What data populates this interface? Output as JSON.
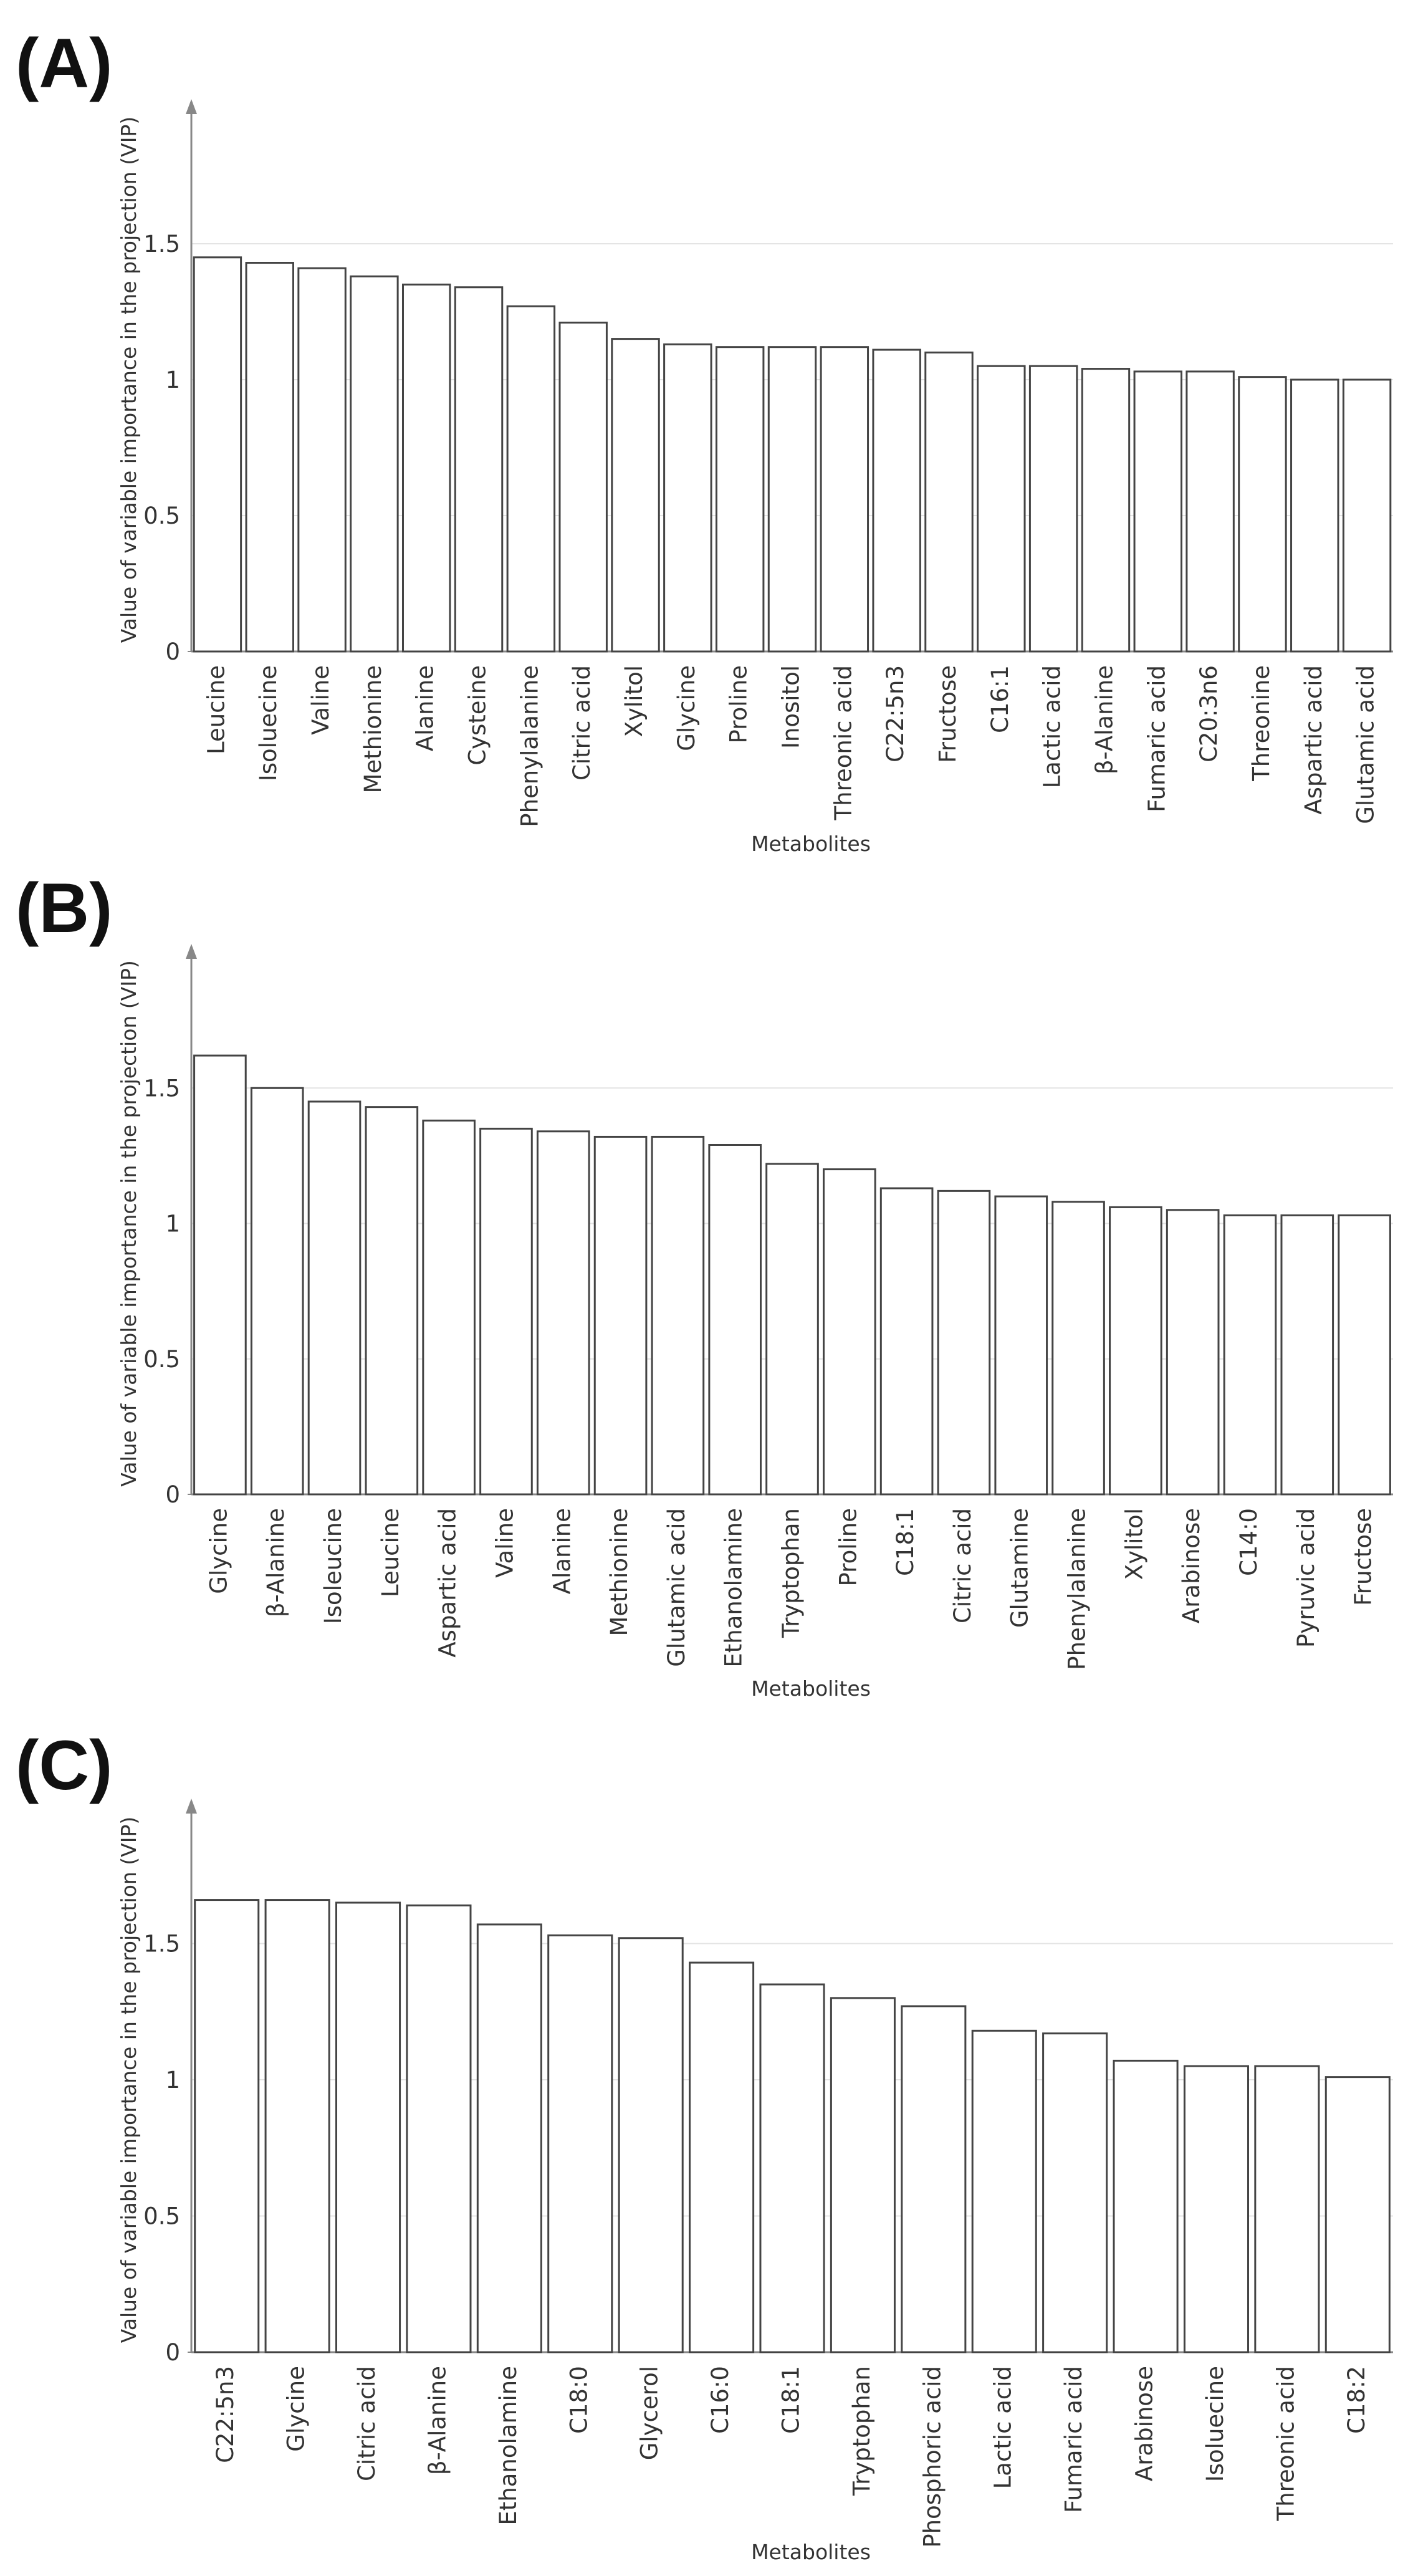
{
  "chart_data": [
    {
      "type": "bar",
      "title": "(A)",
      "x_label": "Metabolites",
      "y_label": "Value of variable importance in the projection (VIP)",
      "categories": [
        "Leucine",
        "Isoluecine",
        "Valine",
        "Methionine",
        "Alanine",
        "Cysteine",
        "Phenylalanine",
        "Citric acid",
        "Xylitol",
        "Glycine",
        "Proline",
        "Inositol",
        "Threonic acid",
        "C22:5n3",
        "Fructose",
        "C16:1",
        "Lactic acid",
        "β-Alanine",
        "Fumaric acid",
        "C20:3n6",
        "Threonine",
        "Aspartic acid",
        "Glutamic acid"
      ],
      "values": [
        1.45,
        1.43,
        1.41,
        1.38,
        1.35,
        1.34,
        1.27,
        1.21,
        1.15,
        1.13,
        1.12,
        1.12,
        1.12,
        1.11,
        1.1,
        1.05,
        1.05,
        1.04,
        1.03,
        1.03,
        1.01,
        1.0,
        1.0
      ],
      "color": "#ffffff",
      "edgecolor": "#444444",
      "ylim": [
        0,
        2
      ],
      "yticks": [
        0,
        0.5,
        1,
        1.5
      ],
      "grid": true
    },
    {
      "type": "bar",
      "title": "(B)",
      "x_label": "Metabolites",
      "y_label": "Value of variable importance in the projection (VIP)",
      "categories": [
        "Glycine",
        "β-Alanine",
        "Isoleucine",
        "Leucine",
        "Aspartic acid",
        "Valine",
        "Alanine",
        "Methionine",
        "Glutamic acid",
        "Ethanolamine",
        "Tryptophan",
        "Proline",
        "C18:1",
        "Citric acid",
        "Glutamine",
        "Phenylalanine",
        "Xylitol",
        "Arabinose",
        "C14:0",
        "Pyruvic acid",
        "Fructose"
      ],
      "values": [
        1.62,
        1.5,
        1.45,
        1.43,
        1.38,
        1.35,
        1.34,
        1.32,
        1.32,
        1.29,
        1.22,
        1.2,
        1.13,
        1.12,
        1.1,
        1.08,
        1.06,
        1.05,
        1.03,
        1.03,
        1.03
      ],
      "color": "#ffffff",
      "edgecolor": "#444444",
      "ylim": [
        0,
        2
      ],
      "yticks": [
        0,
        0.5,
        1,
        1.5
      ],
      "grid": true
    },
    {
      "type": "bar",
      "title": "(C)",
      "x_label": "Metabolites",
      "y_label": "Value of variable importance in the projection (VIP)",
      "categories": [
        "C22:5n3",
        "Glycine",
        "Citric acid",
        "β-Alanine",
        "Ethanolamine",
        "C18:0",
        "Glycerol",
        "C16:0",
        "C18:1",
        "Tryptophan",
        "Phosphoric acid",
        "Lactic acid",
        "Fumaric acid",
        "Arabinose",
        "Isoluecine",
        "Threonic acid",
        "C18:2"
      ],
      "values": [
        1.66,
        1.66,
        1.65,
        1.64,
        1.57,
        1.53,
        1.52,
        1.43,
        1.35,
        1.3,
        1.27,
        1.18,
        1.17,
        1.07,
        1.05,
        1.05,
        1.01
      ],
      "color": "#ffffff",
      "edgecolor": "#444444",
      "ylim": [
        0,
        2
      ],
      "yticks": [
        0,
        0.5,
        1,
        1.5
      ],
      "grid": true
    }
  ]
}
